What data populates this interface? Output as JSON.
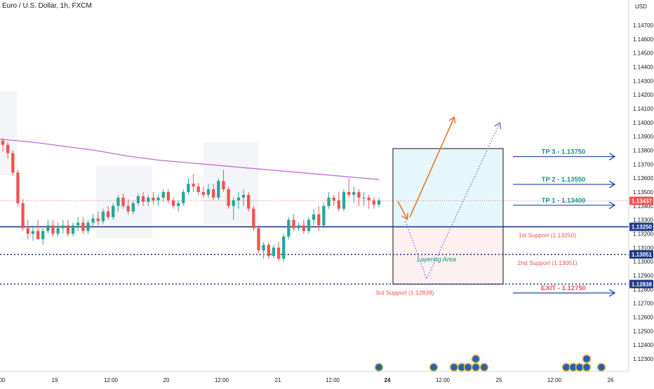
{
  "header": {
    "symbol_title": "Euro / U.S. Dollar, 1h, FXCM"
  },
  "price_axis": {
    "currency": "USD",
    "ticks": [
      "1.14700",
      "1.14600",
      "1.14500",
      "1.14400",
      "1.14300",
      "1.14200",
      "1.14100",
      "1.14000",
      "1.13900",
      "1.13800",
      "1.13700",
      "1.13600",
      "1.13500",
      "1.13400",
      "1.13300",
      "1.13200",
      "1.13100",
      "1.13000",
      "1.12900",
      "1.12800",
      "1.12700",
      "1.12600",
      "1.12500",
      "1.12400",
      "1.12300"
    ],
    "markers": [
      {
        "label": "1.13437",
        "value": 1.13437,
        "color": "#ef5350"
      },
      {
        "label": "1.13250",
        "value": 1.1325,
        "color": "#1e3a8a"
      },
      {
        "label": "1.13051",
        "value": 1.13051,
        "color": "#1e3a8a"
      },
      {
        "label": "1.12838",
        "value": 1.12838,
        "color": "#1e3a8a"
      }
    ]
  },
  "time_axis": {
    "labels": [
      "00",
      "19",
      "12:00",
      "20",
      "12:00",
      "21",
      "12:00",
      "24",
      "12:00",
      "25",
      "12:00",
      "26"
    ],
    "bold_label": "24"
  },
  "levels": [
    {
      "name": "tp3",
      "text": "TP 3 - 1.13750",
      "value": 1.1375,
      "color": "#089981"
    },
    {
      "name": "tp2",
      "text": "TP 2 - 1.13550",
      "value": 1.1355,
      "color": "#089981"
    },
    {
      "name": "tp1",
      "text": "TP 1 - 1.13400",
      "value": 1.134,
      "color": "#089981"
    },
    {
      "name": "exit",
      "text": "EXIT - 1.12750",
      "value": 1.1275,
      "color": "#ef5350"
    }
  ],
  "supports": [
    {
      "text": "1st Support (1.13250)",
      "value": 1.1325
    },
    {
      "text": "2nd Support (1.13051)",
      "value": 1.13051
    },
    {
      "text": "3rd Support (1.12838)",
      "value": 1.12838
    }
  ],
  "layering_label": "Layering Area",
  "colors": {
    "up": "#26a69a",
    "down": "#ef5350",
    "ma": "#c36bd6",
    "support_line": "#1e3a8a",
    "arrow_solid": "#e8742a",
    "arrow_dotted": "#6b4ee6",
    "target_arrow": "#1e40af",
    "profit_zone": "#e6f7fb",
    "loss_zone": "#fdf0f0"
  },
  "chart_data": {
    "type": "candlestick",
    "title": "Euro / U.S. Dollar, 1h, FXCM",
    "ylabel": "USD",
    "ylim": [
      1.1222,
      1.1478
    ],
    "ohlc": [
      [
        1.1387,
        1.1389,
        1.1379,
        1.1384
      ],
      [
        1.1384,
        1.1386,
        1.1374,
        1.1378
      ],
      [
        1.1378,
        1.138,
        1.1362,
        1.1364
      ],
      [
        1.1364,
        1.1366,
        1.134,
        1.1342
      ],
      [
        1.1342,
        1.1345,
        1.1322,
        1.1324
      ],
      [
        1.1324,
        1.133,
        1.1316,
        1.132
      ],
      [
        1.132,
        1.1326,
        1.1315,
        1.1322
      ],
      [
        1.1322,
        1.133,
        1.1318,
        1.1316
      ],
      [
        1.1316,
        1.1324,
        1.1312,
        1.1322
      ],
      [
        1.1322,
        1.133,
        1.132,
        1.1326
      ],
      [
        1.1326,
        1.133,
        1.1318,
        1.132
      ],
      [
        1.132,
        1.1328,
        1.1318,
        1.1324
      ],
      [
        1.1324,
        1.133,
        1.132,
        1.1326
      ],
      [
        1.1326,
        1.133,
        1.1318,
        1.132
      ],
      [
        1.132,
        1.1328,
        1.1318,
        1.1326
      ],
      [
        1.1326,
        1.1332,
        1.1322,
        1.1328
      ],
      [
        1.1328,
        1.1332,
        1.132,
        1.1322
      ],
      [
        1.1322,
        1.133,
        1.132,
        1.1328
      ],
      [
        1.1328,
        1.1334,
        1.1324,
        1.1331
      ],
      [
        1.1331,
        1.1336,
        1.1326,
        1.1329
      ],
      [
        1.1329,
        1.1338,
        1.1327,
        1.1336
      ],
      [
        1.1336,
        1.134,
        1.133,
        1.1332
      ],
      [
        1.1332,
        1.1342,
        1.133,
        1.134
      ],
      [
        1.134,
        1.1348,
        1.1336,
        1.1346
      ],
      [
        1.1346,
        1.1349,
        1.1338,
        1.134
      ],
      [
        1.134,
        1.1345,
        1.1334,
        1.1336
      ],
      [
        1.1336,
        1.1344,
        1.1334,
        1.1342
      ],
      [
        1.1342,
        1.1349,
        1.134,
        1.1347
      ],
      [
        1.1347,
        1.135,
        1.134,
        1.1343
      ],
      [
        1.1343,
        1.1348,
        1.134,
        1.1346
      ],
      [
        1.1346,
        1.135,
        1.1341,
        1.1344
      ],
      [
        1.1344,
        1.1348,
        1.134,
        1.1346
      ],
      [
        1.1346,
        1.1352,
        1.1343,
        1.135
      ],
      [
        1.135,
        1.1352,
        1.1342,
        1.1344
      ],
      [
        1.1344,
        1.1346,
        1.1338,
        1.134
      ],
      [
        1.134,
        1.1344,
        1.1336,
        1.1342
      ],
      [
        1.1342,
        1.1352,
        1.134,
        1.135
      ],
      [
        1.135,
        1.136,
        1.1348,
        1.1356
      ],
      [
        1.1356,
        1.1363,
        1.135,
        1.1354
      ],
      [
        1.1354,
        1.1357,
        1.1348,
        1.135
      ],
      [
        1.135,
        1.1354,
        1.1346,
        1.1348
      ],
      [
        1.1348,
        1.1356,
        1.1346,
        1.1352
      ],
      [
        1.1352,
        1.1356,
        1.1344,
        1.1346
      ],
      [
        1.1346,
        1.136,
        1.1344,
        1.1358
      ],
      [
        1.1358,
        1.1366,
        1.135,
        1.1352
      ],
      [
        1.1352,
        1.1354,
        1.1338,
        1.134
      ],
      [
        1.134,
        1.1346,
        1.133,
        1.1344
      ],
      [
        1.1344,
        1.135,
        1.1338,
        1.1346
      ],
      [
        1.1346,
        1.1352,
        1.134,
        1.1348
      ],
      [
        1.1348,
        1.135,
        1.1336,
        1.1338
      ],
      [
        1.1338,
        1.134,
        1.1322,
        1.1324
      ],
      [
        1.1324,
        1.1326,
        1.1306,
        1.1308
      ],
      [
        1.1308,
        1.1314,
        1.1302,
        1.1312
      ],
      [
        1.1312,
        1.1314,
        1.1302,
        1.1304
      ],
      [
        1.1304,
        1.1312,
        1.1302,
        1.131
      ],
      [
        1.131,
        1.1314,
        1.13,
        1.1302
      ],
      [
        1.1302,
        1.132,
        1.13,
        1.1318
      ],
      [
        1.1318,
        1.1332,
        1.1316,
        1.133
      ],
      [
        1.133,
        1.1334,
        1.1322,
        1.1324
      ],
      [
        1.1324,
        1.1328,
        1.1322,
        1.1326
      ],
      [
        1.1326,
        1.133,
        1.132,
        1.1322
      ],
      [
        1.1322,
        1.1332,
        1.132,
        1.133
      ],
      [
        1.133,
        1.1338,
        1.1326,
        1.1334
      ],
      [
        1.1334,
        1.134,
        1.1322,
        1.1326
      ],
      [
        1.1326,
        1.1342,
        1.1324,
        1.134
      ],
      [
        1.134,
        1.135,
        1.1338,
        1.1346
      ],
      [
        1.1346,
        1.1348,
        1.134,
        1.1344
      ],
      [
        1.1344,
        1.135,
        1.1336,
        1.1338
      ],
      [
        1.1338,
        1.1352,
        1.1336,
        1.135
      ],
      [
        1.135,
        1.136,
        1.1346,
        1.1348
      ],
      [
        1.1348,
        1.1354,
        1.1342,
        1.135
      ],
      [
        1.135,
        1.1352,
        1.134,
        1.1346
      ],
      [
        1.1346,
        1.135,
        1.134,
        1.1346
      ],
      [
        1.1346,
        1.1348,
        1.1338,
        1.1344
      ],
      [
        1.1344,
        1.1346,
        1.1338,
        1.1341
      ],
      [
        1.1341,
        1.1346,
        1.1339,
        1.1344
      ]
    ],
    "moving_average": [
      1.1388,
      1.1386,
      1.1383,
      1.138,
      1.1376,
      1.1373,
      1.1371,
      1.1369,
      1.1367,
      1.1365,
      1.1363,
      1.1361,
      1.1359
    ]
  }
}
